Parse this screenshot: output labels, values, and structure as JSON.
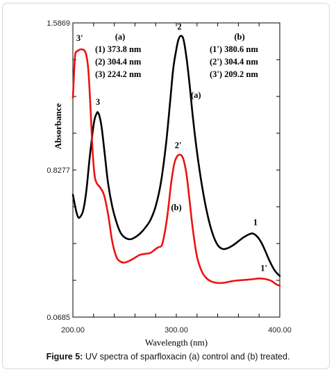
{
  "caption": {
    "label": "Figure 5:",
    "text": "UV spectra of sparfloxacin (a) control and (b) treated."
  },
  "chart_data": {
    "type": "line",
    "xlabel": "Wavelength (nm)",
    "ylabel": "Absorbance",
    "xlim": [
      200,
      400
    ],
    "ylim": [
      0.0685,
      1.5869
    ],
    "x_tick_labels": [
      "200.00",
      "300.00",
      "400.00"
    ],
    "y_tick_labels": [
      "0.0685",
      "0.8277",
      "1.5869"
    ],
    "colors": {
      "a": "#000000",
      "b": "#ee1111"
    },
    "series": [
      {
        "name": "(a)",
        "color": "#000000",
        "x": [
          200,
          203,
          205,
          207,
          210,
          213,
          216,
          219,
          221,
          223,
          224.2,
          226,
          228,
          231,
          234,
          238,
          242,
          246,
          250,
          255,
          260,
          265,
          270,
          275,
          280,
          285,
          290,
          294,
          297,
          300,
          302,
          304.4,
          307,
          310,
          313,
          316,
          320,
          325,
          330,
          335,
          340,
          345,
          350,
          355,
          360,
          365,
          370,
          373.8,
          378,
          382,
          386,
          390,
          395,
          400
        ],
        "y": [
          0.7,
          0.62,
          0.585,
          0.585,
          0.62,
          0.72,
          0.88,
          1.02,
          1.09,
          1.12,
          1.125,
          1.1,
          1.04,
          0.9,
          0.76,
          0.64,
          0.56,
          0.505,
          0.48,
          0.47,
          0.48,
          0.5,
          0.53,
          0.57,
          0.64,
          0.76,
          0.96,
          1.18,
          1.35,
          1.45,
          1.5,
          1.52,
          1.5,
          1.4,
          1.26,
          1.1,
          0.92,
          0.74,
          0.6,
          0.5,
          0.44,
          0.42,
          0.425,
          0.44,
          0.46,
          0.48,
          0.495,
          0.5,
          0.485,
          0.455,
          0.41,
          0.36,
          0.31,
          0.28
        ]
      },
      {
        "name": "(b)",
        "color": "#ee1111",
        "x": [
          200,
          202,
          204,
          205.5,
          207,
          209.2,
          211,
          213,
          215,
          217,
          219,
          221,
          223,
          226,
          230,
          234,
          238,
          242,
          246,
          250,
          255,
          260,
          265,
          270,
          275,
          280,
          283,
          286,
          289,
          292,
          295,
          298,
          301,
          304.4,
          307,
          310,
          313,
          316,
          320,
          325,
          330,
          335,
          340,
          345,
          350,
          355,
          360,
          365,
          370,
          375,
          380.6,
          386,
          392,
          396,
          400
        ],
        "y": [
          1.2,
          1.41,
          1.44,
          1.445,
          1.45,
          1.45,
          1.445,
          1.42,
          1.34,
          1.15,
          0.93,
          0.8,
          0.76,
          0.74,
          0.7,
          0.6,
          0.46,
          0.38,
          0.355,
          0.35,
          0.36,
          0.375,
          0.39,
          0.395,
          0.4,
          0.42,
          0.43,
          0.44,
          0.51,
          0.62,
          0.76,
          0.86,
          0.9,
          0.905,
          0.88,
          0.8,
          0.66,
          0.52,
          0.38,
          0.3,
          0.265,
          0.25,
          0.245,
          0.245,
          0.25,
          0.255,
          0.258,
          0.26,
          0.262,
          0.265,
          0.268,
          0.265,
          0.255,
          0.24,
          0.23
        ]
      }
    ],
    "peak_labels": [
      {
        "text": "1",
        "x": 373.8,
        "y": 0.5
      },
      {
        "text": "2",
        "x": 304.4,
        "y": 1.52
      },
      {
        "text": "3",
        "x": 224.2,
        "y": 1.125
      },
      {
        "text": "1'",
        "x": 380.6,
        "y": 0.268
      },
      {
        "text": "2'",
        "x": 304.4,
        "y": 0.905
      },
      {
        "text": "3'",
        "x": 209.2,
        "y": 1.45
      }
    ],
    "curve_labels": [
      {
        "text": "(a)",
        "x": 319,
        "y": 1.2
      },
      {
        "text": "(b)",
        "x": 300,
        "y": 0.62
      }
    ],
    "legend_a": {
      "title": "(a)",
      "lines": [
        "(1) 373.8 nm",
        "(2) 304.4 nm",
        "(3) 224.2 nm"
      ]
    },
    "legend_b": {
      "title": "(b)",
      "lines": [
        "(1') 380.6 nm",
        "(2') 304.4 nm",
        "(3') 209.2 nm"
      ]
    }
  }
}
